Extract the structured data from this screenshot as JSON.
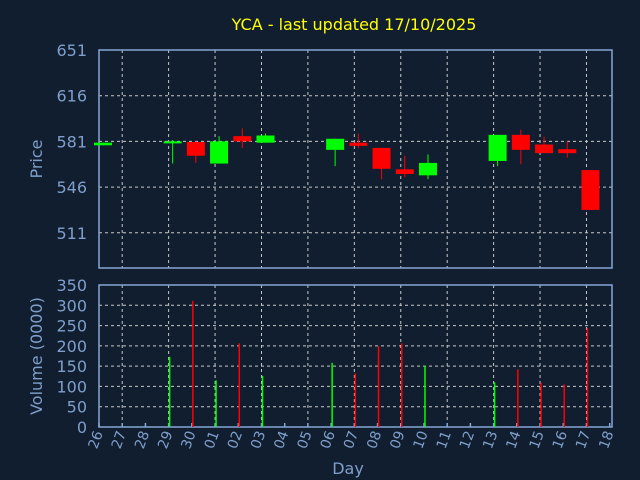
{
  "chart_data": {
    "type": "candlestick",
    "title": "YCA - last updated 17/10/2025",
    "xlabel": "Day",
    "price_panel": {
      "ylabel": "Price",
      "ylim": [
        484,
        651
      ],
      "yticks": [
        511,
        546,
        581,
        616,
        651
      ],
      "grid": true
    },
    "volume_panel": {
      "ylabel": "Volume (0000)",
      "ylim": [
        0,
        350
      ],
      "yticks": [
        0,
        50,
        100,
        150,
        200,
        250,
        300,
        350
      ],
      "grid": true
    },
    "x_tick_labels": [
      "26",
      "27",
      "28",
      "29",
      "30",
      "01",
      "02",
      "03",
      "04",
      "05",
      "06",
      "07",
      "08",
      "09",
      "10",
      "11",
      "12",
      "13",
      "14",
      "15",
      "16",
      "17",
      "18"
    ],
    "candles": [
      {
        "day": "26",
        "open": 578,
        "high": 580,
        "low": 578,
        "close": 580,
        "volume": 0
      },
      {
        "day": "29",
        "open": 580,
        "high": 582,
        "low": 564,
        "close": 581,
        "volume": 173
      },
      {
        "day": "30",
        "open": 580.5,
        "high": 581,
        "low": 564.5,
        "close": 570,
        "volume": 311
      },
      {
        "day": "01",
        "open": 564,
        "high": 585,
        "low": 564,
        "close": 581,
        "volume": 115
      },
      {
        "day": "02",
        "open": 585,
        "high": 591,
        "low": 576,
        "close": 581,
        "volume": 206
      },
      {
        "day": "03",
        "open": 580,
        "high": 587,
        "low": 580,
        "close": 585.5,
        "volume": 126
      },
      {
        "day": "06",
        "open": 574.5,
        "high": 583,
        "low": 562,
        "close": 583,
        "volume": 158
      },
      {
        "day": "07",
        "open": 580,
        "high": 587,
        "low": 575.7,
        "close": 577.6,
        "volume": 132
      },
      {
        "day": "08",
        "open": 576,
        "high": 576,
        "low": 552,
        "close": 560,
        "volume": 199
      },
      {
        "day": "09",
        "open": 559.6,
        "high": 570,
        "low": 553.5,
        "close": 556,
        "volume": 206
      },
      {
        "day": "10",
        "open": 555,
        "high": 571,
        "low": 552,
        "close": 564.5,
        "volume": 151
      },
      {
        "day": "13",
        "open": 566,
        "high": 586,
        "low": 562,
        "close": 586,
        "volume": 110
      },
      {
        "day": "14",
        "open": 586,
        "high": 590,
        "low": 563.5,
        "close": 574.5,
        "volume": 142
      },
      {
        "day": "15",
        "open": 578.6,
        "high": 584.6,
        "low": 572,
        "close": 572,
        "volume": 109
      },
      {
        "day": "16",
        "open": 575,
        "high": 581,
        "low": 568.5,
        "close": 572,
        "volume": 105
      },
      {
        "day": "17",
        "open": 559,
        "high": 559,
        "low": 528.5,
        "close": 528.5,
        "volume": 244
      }
    ],
    "colors": {
      "up": "#00ff00",
      "down": "#ff0000",
      "title": "#ffff00",
      "background": "#111e30"
    }
  }
}
